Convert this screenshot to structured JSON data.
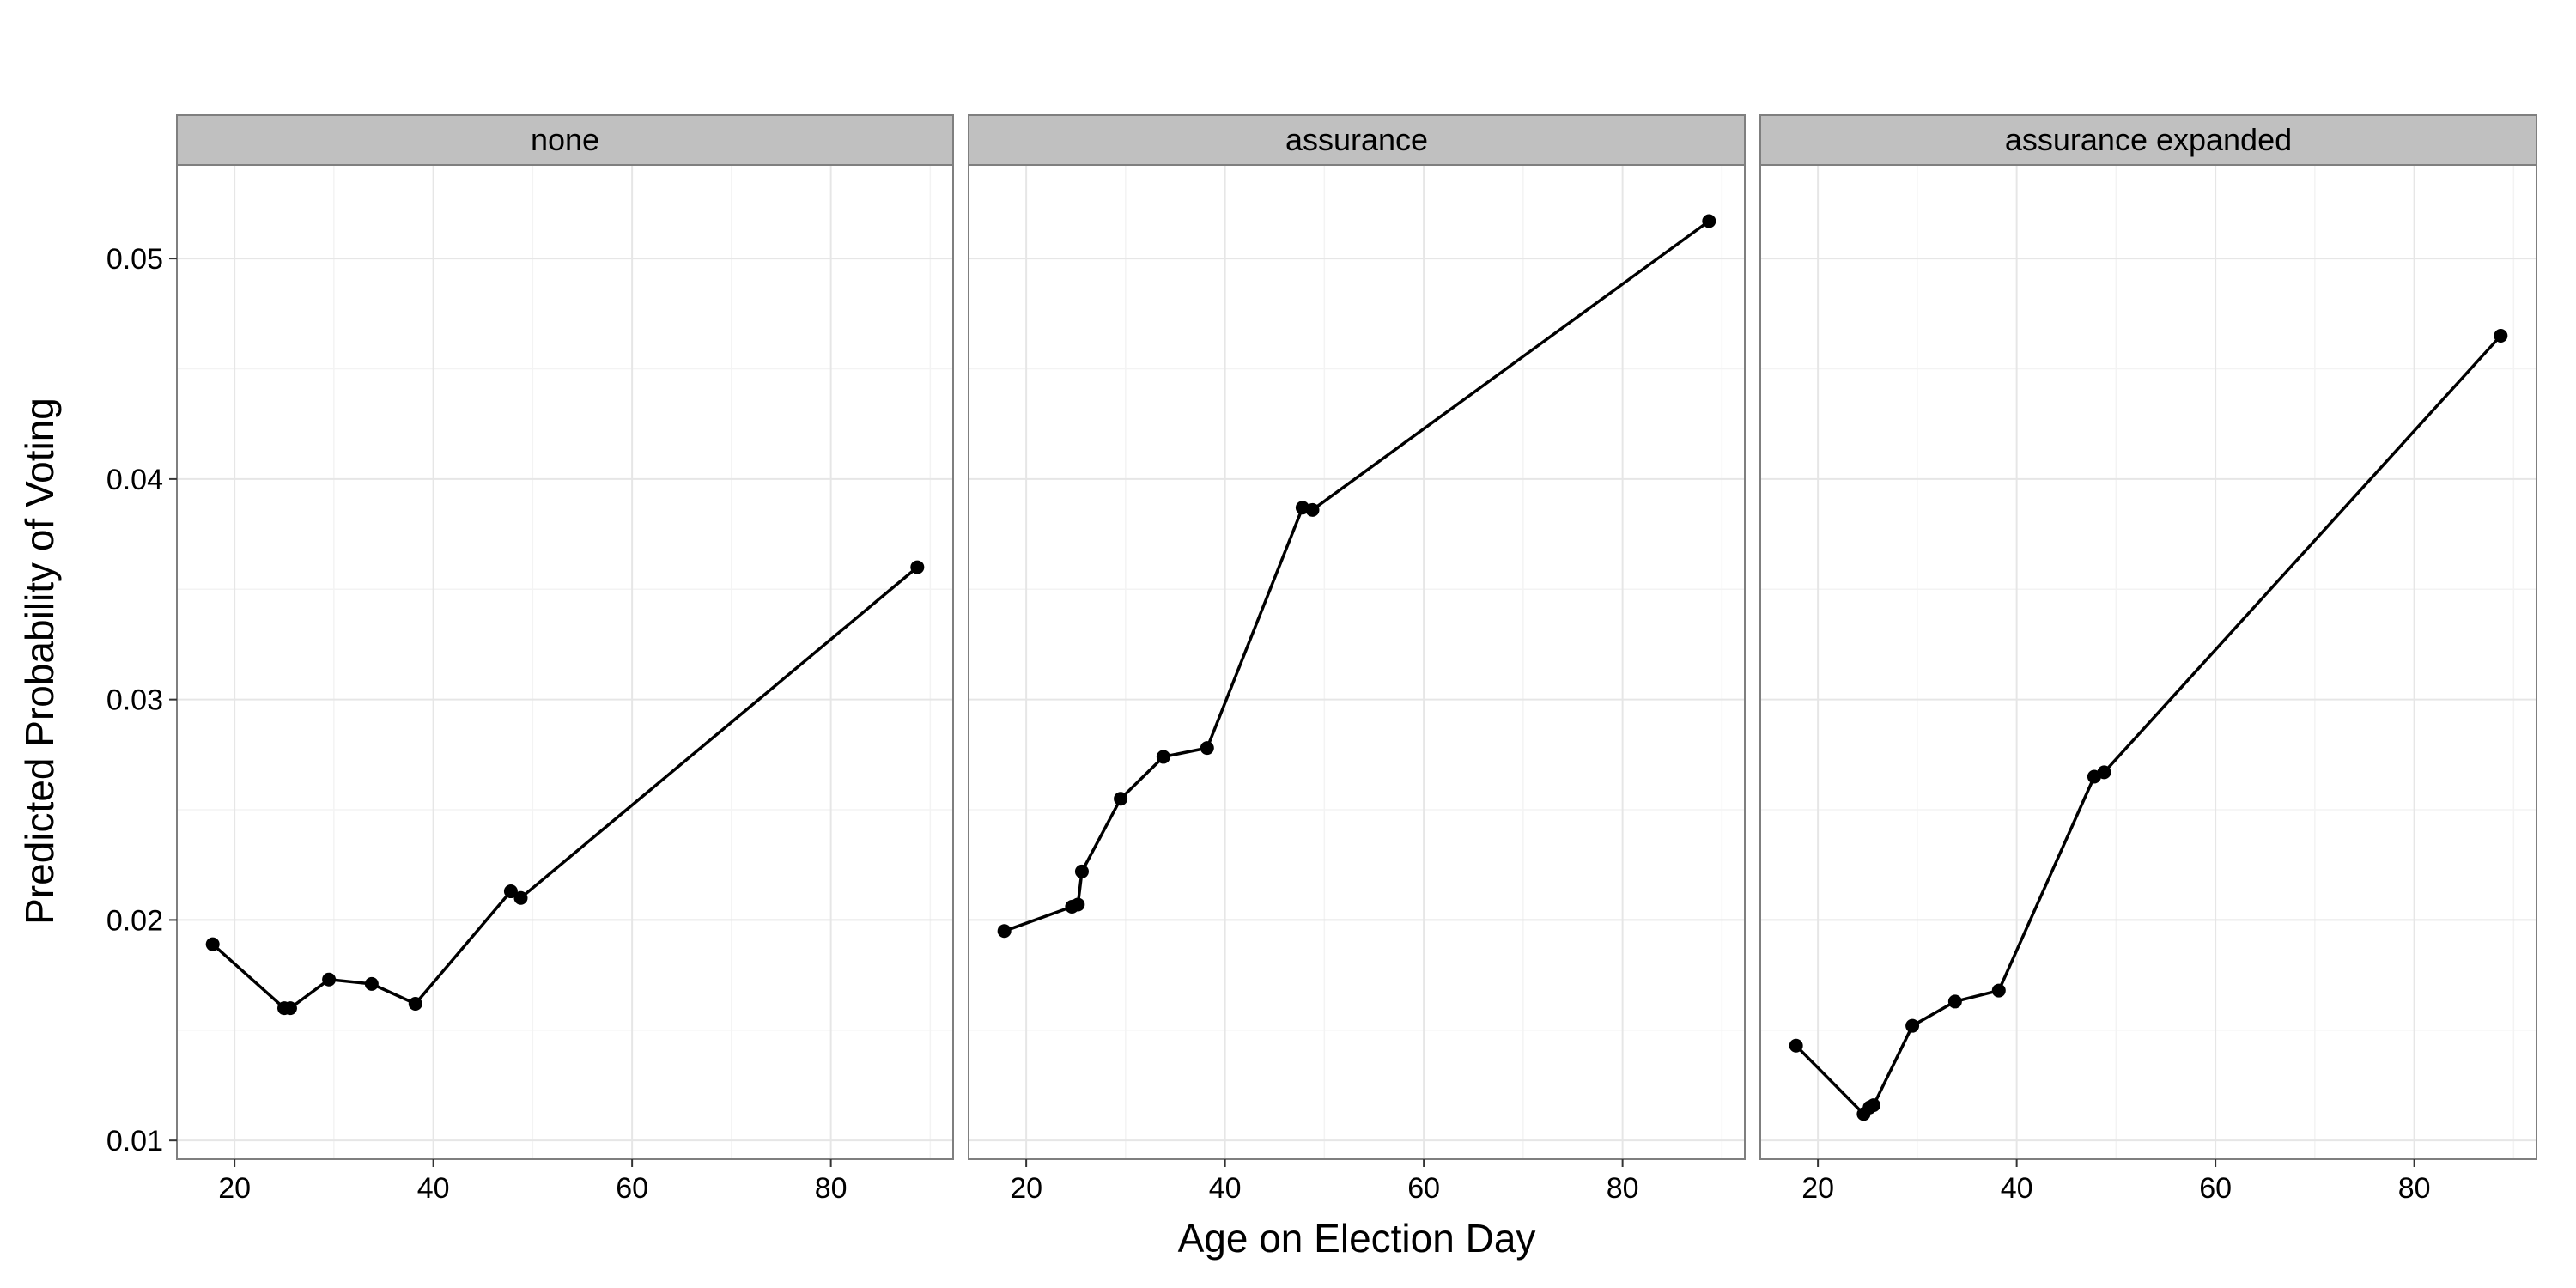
{
  "chart_data": {
    "type": "line",
    "facet_by": "panel",
    "panels": [
      {
        "name": "none",
        "x": [
          17.8,
          25.0,
          25.6,
          29.5,
          33.8,
          38.2,
          47.8,
          48.8,
          88.7
        ],
        "y": [
          0.0189,
          0.016,
          0.016,
          0.0173,
          0.0171,
          0.0162,
          0.0213,
          0.021,
          0.036
        ]
      },
      {
        "name": "assurance",
        "x": [
          17.8,
          24.6,
          25.2,
          25.6,
          29.5,
          33.8,
          38.2,
          47.8,
          48.8,
          88.7
        ],
        "y": [
          0.0195,
          0.0206,
          0.0207,
          0.0222,
          0.0255,
          0.0274,
          0.0278,
          0.0387,
          0.0386,
          0.0517
        ]
      },
      {
        "name": "assurance expanded",
        "x": [
          17.8,
          24.6,
          25.2,
          25.6,
          29.5,
          33.8,
          38.2,
          47.8,
          48.8,
          88.7
        ],
        "y": [
          0.0143,
          0.0112,
          0.0115,
          0.0116,
          0.0152,
          0.0163,
          0.0168,
          0.0265,
          0.0267,
          0.0465
        ]
      }
    ],
    "xlabel": "Age on Election Day",
    "ylabel": "Predicted Probability of Voting",
    "xlim": [
      14.2,
      92.3
    ],
    "ylim": [
      0.00915,
      0.05425
    ],
    "x_ticks": [
      20,
      40,
      60,
      80
    ],
    "x_tick_labels": [
      "20",
      "40",
      "60",
      "80"
    ],
    "y_ticks": [
      0.01,
      0.02,
      0.03,
      0.04,
      0.05
    ],
    "y_tick_labels": [
      "0.01",
      "0.02",
      "0.03",
      "0.04",
      "0.05"
    ],
    "grid": true,
    "legend": "none"
  },
  "colors": {
    "panel_background": "#ffffff",
    "panel_border": "#7f7f7f",
    "strip_background": "#c0c0c0",
    "grid_major": "#e6e6e6",
    "grid_minor": "#f3f3f3",
    "line": "#000000",
    "point": "#000000"
  }
}
